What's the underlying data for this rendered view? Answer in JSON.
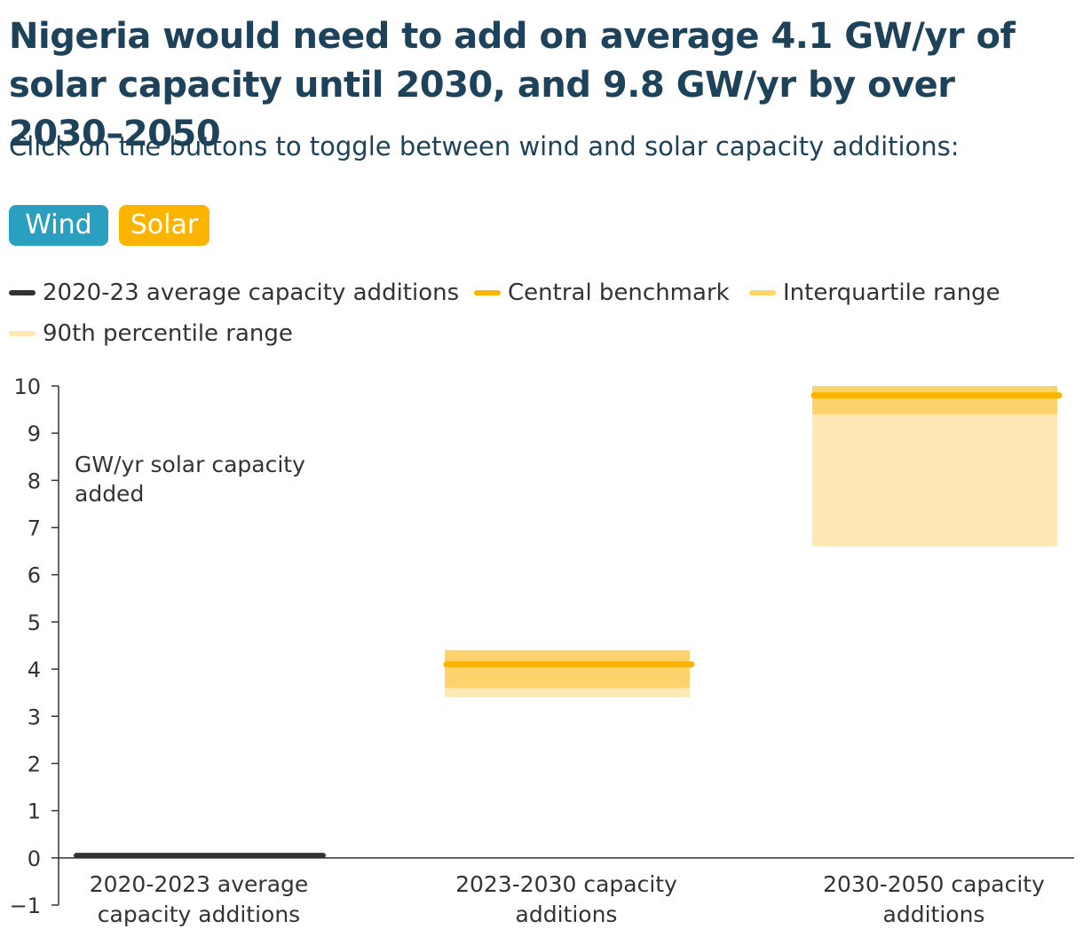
{
  "header": {
    "title": "Nigeria would need to add on average 4.1 GW/yr of solar capacity until 2030, and 9.8 GW/yr by over 2030–2050",
    "subtitle": "Click on the buttons to toggle between wind and solar capacity additions:"
  },
  "toggle": {
    "wind_label": "Wind",
    "solar_label": "Solar",
    "wind_color": "#2a9fc0",
    "solar_color": "#fbb400",
    "selected": "Solar"
  },
  "legend": {
    "items": [
      {
        "label": "2020-23 average capacity additions",
        "color": "#333333"
      },
      {
        "label": "Central benchmark",
        "color": "#fbb400"
      },
      {
        "label": "Interquartile range",
        "color": "#ffd36b"
      },
      {
        "label": "90th percentile range",
        "color": "#ffe8b3"
      }
    ]
  },
  "chart_data": {
    "type": "bar",
    "annotation_line1": "GW/yr solar capacity",
    "annotation_line2": "added",
    "categories": [
      {
        "line1": "2020-2023 average",
        "line2": "capacity additions"
      },
      {
        "line1": "2023-2030 capacity",
        "line2": "additions"
      },
      {
        "line1": "2030-2050 capacity",
        "line2": "additions"
      }
    ],
    "yticks": [
      "−1",
      "0",
      "1",
      "2",
      "3",
      "4",
      "5",
      "6",
      "7",
      "8",
      "9",
      "10"
    ],
    "ylim": [
      -1,
      10
    ],
    "historical": {
      "category": 0,
      "value": 0.05
    },
    "central_benchmark": [
      null,
      4.1,
      9.8
    ],
    "interquartile_range": [
      null,
      [
        3.6,
        4.4
      ],
      [
        9.4,
        10.0
      ]
    ],
    "p90_range": [
      null,
      [
        3.4,
        4.4
      ],
      [
        6.6,
        10.0
      ]
    ],
    "colors": {
      "historical": "#333333",
      "central": "#fbb400",
      "iqr": "#ffd36b",
      "p90": "#ffe8b3",
      "axis": "#333333"
    }
  }
}
